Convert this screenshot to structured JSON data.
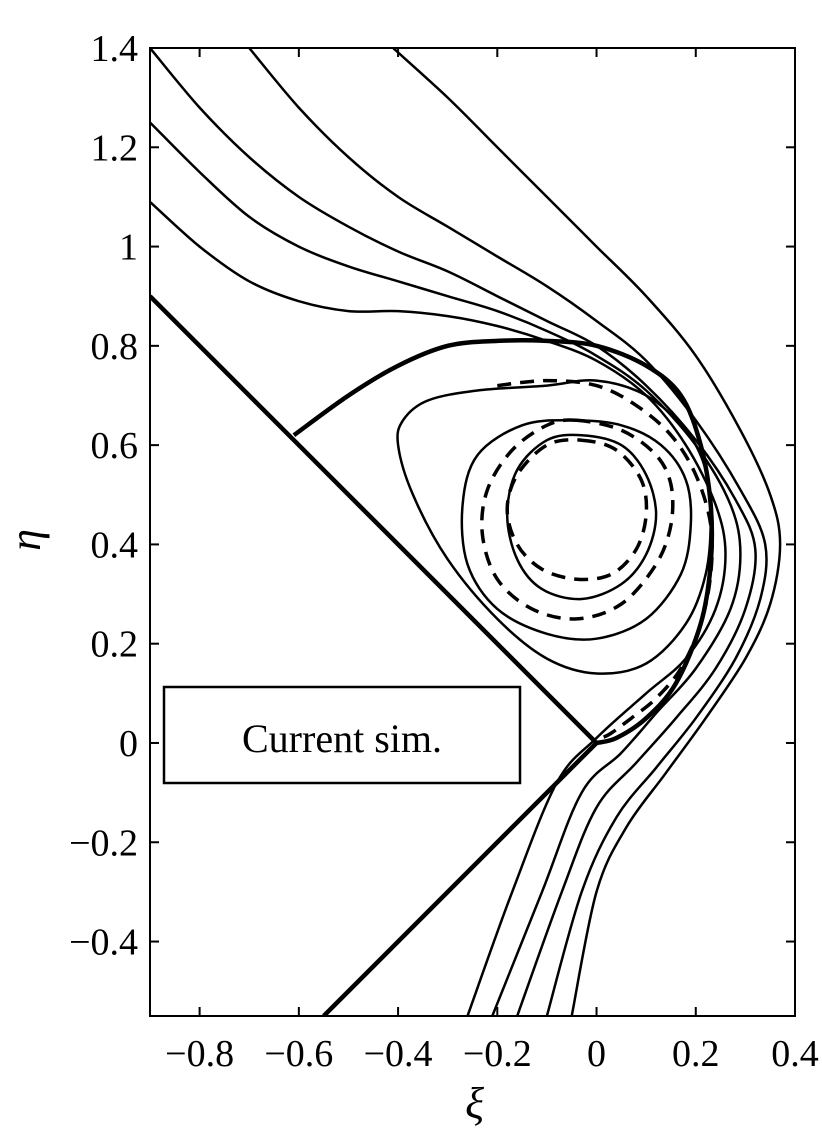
{
  "chart_data": {
    "type": "line",
    "title": "",
    "xlabel": "ξ",
    "ylabel": "η",
    "xlim": [
      -0.9,
      0.4
    ],
    "ylim": [
      -0.55,
      1.4
    ],
    "grid": false,
    "xticks": [
      -0.8,
      -0.6,
      -0.4,
      -0.2,
      0,
      0.2,
      0.4
    ],
    "yticks": [
      -0.4,
      -0.2,
      0,
      0.2,
      0.4,
      0.6,
      0.8,
      1,
      1.2,
      1.4
    ],
    "xtick_labels": [
      "−0.8",
      "−0.6",
      "−0.4",
      "−0.2",
      "0",
      "0.2",
      "0.4"
    ],
    "ytick_labels": [
      "−0.4",
      "−0.2",
      "0",
      "0.2",
      "0.4",
      "0.6",
      "0.8",
      "1",
      "1.2",
      "1.4"
    ],
    "legend": {
      "text": "Current sim.",
      "placement": "lower-left"
    },
    "series": [
      {
        "style": "thick",
        "x": [
          -0.9,
          -0.61,
          0.0,
          -0.55
        ],
        "y": [
          0.9,
          0.61,
          0.0,
          -0.55
        ]
      },
      {
        "style": "thick",
        "x": [
          -0.61,
          -0.5,
          -0.4,
          -0.3,
          -0.2,
          -0.1,
          0.0,
          0.1,
          0.17,
          0.21,
          0.23,
          0.23,
          0.21,
          0.16,
          0.1,
          0.04,
          0.0
        ],
        "y": [
          0.62,
          0.7,
          0.76,
          0.8,
          0.81,
          0.81,
          0.8,
          0.76,
          0.7,
          0.6,
          0.48,
          0.36,
          0.24,
          0.12,
          0.05,
          0.01,
          0.0
        ]
      },
      {
        "style": "solid",
        "x": [
          -0.9,
          -0.8,
          -0.7,
          -0.6,
          -0.5,
          -0.4,
          -0.3,
          -0.2,
          -0.1,
          0.0,
          0.1,
          0.18,
          0.24,
          0.26,
          0.24,
          0.18,
          0.1,
          0.0,
          -0.08,
          -0.17,
          -0.26
        ],
        "y": [
          1.09,
          1.0,
          0.93,
          0.89,
          0.87,
          0.87,
          0.86,
          0.84,
          0.81,
          0.77,
          0.7,
          0.6,
          0.48,
          0.38,
          0.27,
          0.17,
          0.1,
          0.01,
          -0.08,
          -0.3,
          -0.55
        ]
      },
      {
        "style": "solid",
        "x": [
          -0.9,
          -0.8,
          -0.7,
          -0.6,
          -0.5,
          -0.4,
          -0.3,
          -0.2,
          -0.1,
          0.0,
          0.1,
          0.2,
          0.27,
          0.29,
          0.27,
          0.2,
          0.12,
          0.05,
          -0.03,
          -0.11,
          -0.21
        ],
        "y": [
          1.25,
          1.15,
          1.06,
          1.0,
          0.96,
          0.93,
          0.9,
          0.87,
          0.83,
          0.78,
          0.71,
          0.6,
          0.48,
          0.38,
          0.27,
          0.15,
          0.06,
          -0.02,
          -0.1,
          -0.3,
          -0.55
        ]
      },
      {
        "style": "solid",
        "x": [
          -0.9,
          -0.8,
          -0.7,
          -0.6,
          -0.5,
          -0.4,
          -0.3,
          -0.2,
          -0.1,
          0.0,
          0.1,
          0.2,
          0.28,
          0.32,
          0.3,
          0.24,
          0.16,
          0.08,
          0.0,
          -0.07,
          -0.16
        ],
        "y": [
          1.4,
          1.28,
          1.18,
          1.1,
          1.04,
          0.99,
          0.95,
          0.9,
          0.85,
          0.8,
          0.72,
          0.61,
          0.49,
          0.39,
          0.27,
          0.15,
          0.05,
          -0.04,
          -0.13,
          -0.3,
          -0.55
        ]
      },
      {
        "style": "solid",
        "x": [
          -0.7,
          -0.6,
          -0.5,
          -0.4,
          -0.3,
          -0.2,
          -0.1,
          0.0,
          0.1,
          0.2,
          0.29,
          0.34,
          0.33,
          0.28,
          0.2,
          0.12,
          0.04,
          -0.03,
          -0.1
        ],
        "y": [
          1.4,
          1.28,
          1.18,
          1.1,
          1.04,
          0.98,
          0.92,
          0.85,
          0.77,
          0.65,
          0.51,
          0.4,
          0.29,
          0.17,
          0.05,
          -0.05,
          -0.15,
          -0.3,
          -0.55
        ]
      },
      {
        "style": "solid",
        "x": [
          -0.41,
          -0.3,
          -0.2,
          -0.1,
          0.0,
          0.1,
          0.2,
          0.29,
          0.35,
          0.37,
          0.35,
          0.3,
          0.22,
          0.14,
          0.06,
          0.0,
          -0.05
        ],
        "y": [
          1.4,
          1.3,
          1.2,
          1.1,
          1.0,
          0.9,
          0.78,
          0.63,
          0.5,
          0.4,
          0.28,
          0.17,
          0.05,
          -0.06,
          -0.17,
          -0.3,
          -0.55
        ]
      },
      {
        "style": "solid",
        "closed": true,
        "x": [
          -0.1,
          0.0,
          0.1,
          0.18,
          0.22,
          0.23,
          0.22,
          0.18,
          0.1,
          0.0,
          -0.1,
          -0.2,
          -0.3,
          -0.37,
          -0.4,
          -0.39,
          -0.34,
          -0.24
        ],
        "y": [
          0.72,
          0.73,
          0.7,
          0.63,
          0.55,
          0.45,
          0.34,
          0.24,
          0.16,
          0.14,
          0.17,
          0.25,
          0.37,
          0.5,
          0.6,
          0.65,
          0.69,
          0.71
        ]
      },
      {
        "style": "solid",
        "closed": true,
        "x": [
          -0.05,
          0.05,
          0.13,
          0.18,
          0.19,
          0.17,
          0.1,
          0.0,
          -0.1,
          -0.2,
          -0.26,
          -0.27,
          -0.24,
          -0.15
        ],
        "y": [
          0.65,
          0.64,
          0.6,
          0.53,
          0.44,
          0.34,
          0.25,
          0.21,
          0.22,
          0.27,
          0.36,
          0.48,
          0.58,
          0.64
        ]
      },
      {
        "style": "solid",
        "closed": true,
        "x": [
          -0.03,
          0.05,
          0.1,
          0.12,
          0.1,
          0.05,
          -0.03,
          -0.11,
          -0.16,
          -0.18,
          -0.16,
          -0.1
        ],
        "y": [
          0.62,
          0.6,
          0.54,
          0.46,
          0.38,
          0.32,
          0.29,
          0.31,
          0.37,
          0.46,
          0.55,
          0.61
        ]
      },
      {
        "style": "dashed",
        "x": [
          -0.2,
          -0.1,
          0.0,
          0.08,
          0.15,
          0.2,
          0.23,
          0.23,
          0.21,
          0.17,
          0.12,
          0.07,
          0.03,
          0.01
        ],
        "y": [
          0.72,
          0.73,
          0.72,
          0.68,
          0.62,
          0.54,
          0.44,
          0.34,
          0.24,
          0.15,
          0.09,
          0.05,
          0.02,
          0.01
        ]
      },
      {
        "style": "dashed",
        "closed": true,
        "x": [
          -0.04,
          0.05,
          0.12,
          0.15,
          0.15,
          0.12,
          0.05,
          -0.04,
          -0.13,
          -0.2,
          -0.23,
          -0.22,
          -0.17,
          -0.1
        ],
        "y": [
          0.65,
          0.63,
          0.58,
          0.52,
          0.44,
          0.36,
          0.28,
          0.25,
          0.27,
          0.33,
          0.42,
          0.51,
          0.59,
          0.64
        ]
      },
      {
        "style": "dashed",
        "closed": true,
        "x": [
          -0.03,
          0.04,
          0.09,
          0.1,
          0.08,
          0.03,
          -0.04,
          -0.11,
          -0.16,
          -0.18,
          -0.16,
          -0.1
        ],
        "y": [
          0.61,
          0.59,
          0.53,
          0.46,
          0.39,
          0.34,
          0.33,
          0.35,
          0.4,
          0.47,
          0.54,
          0.6
        ]
      }
    ]
  }
}
